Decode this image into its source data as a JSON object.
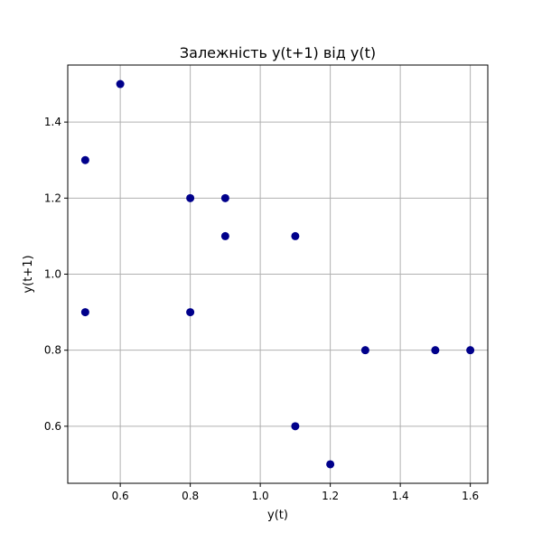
{
  "chart_data": {
    "type": "scatter",
    "title": "Залежність y(t+1) від y(t)",
    "xlabel": "y(t)",
    "ylabel": "y(t+1)",
    "xlim": [
      0.45,
      1.65
    ],
    "ylim": [
      0.45,
      1.55
    ],
    "grid": true,
    "x_ticks": [
      0.6,
      0.8,
      1.0,
      1.2,
      1.4,
      1.6
    ],
    "x_tick_labels": [
      "0.6",
      "0.8",
      "1.0",
      "1.2",
      "1.4",
      "1.6"
    ],
    "y_ticks": [
      0.6,
      0.8,
      1.0,
      1.2,
      1.4
    ],
    "y_tick_labels": [
      "0.6",
      "0.8",
      "1.0",
      "1.2",
      "1.4"
    ],
    "marker_color": "#00008b",
    "points": [
      {
        "x": 0.5,
        "y": 1.3
      },
      {
        "x": 0.5,
        "y": 0.9
      },
      {
        "x": 0.6,
        "y": 1.5
      },
      {
        "x": 0.8,
        "y": 1.2
      },
      {
        "x": 0.8,
        "y": 0.9
      },
      {
        "x": 0.9,
        "y": 1.2
      },
      {
        "x": 0.9,
        "y": 1.1
      },
      {
        "x": 1.1,
        "y": 1.1
      },
      {
        "x": 1.1,
        "y": 0.6
      },
      {
        "x": 1.2,
        "y": 0.5
      },
      {
        "x": 1.3,
        "y": 0.8
      },
      {
        "x": 1.5,
        "y": 0.8
      },
      {
        "x": 1.6,
        "y": 0.8
      }
    ]
  }
}
